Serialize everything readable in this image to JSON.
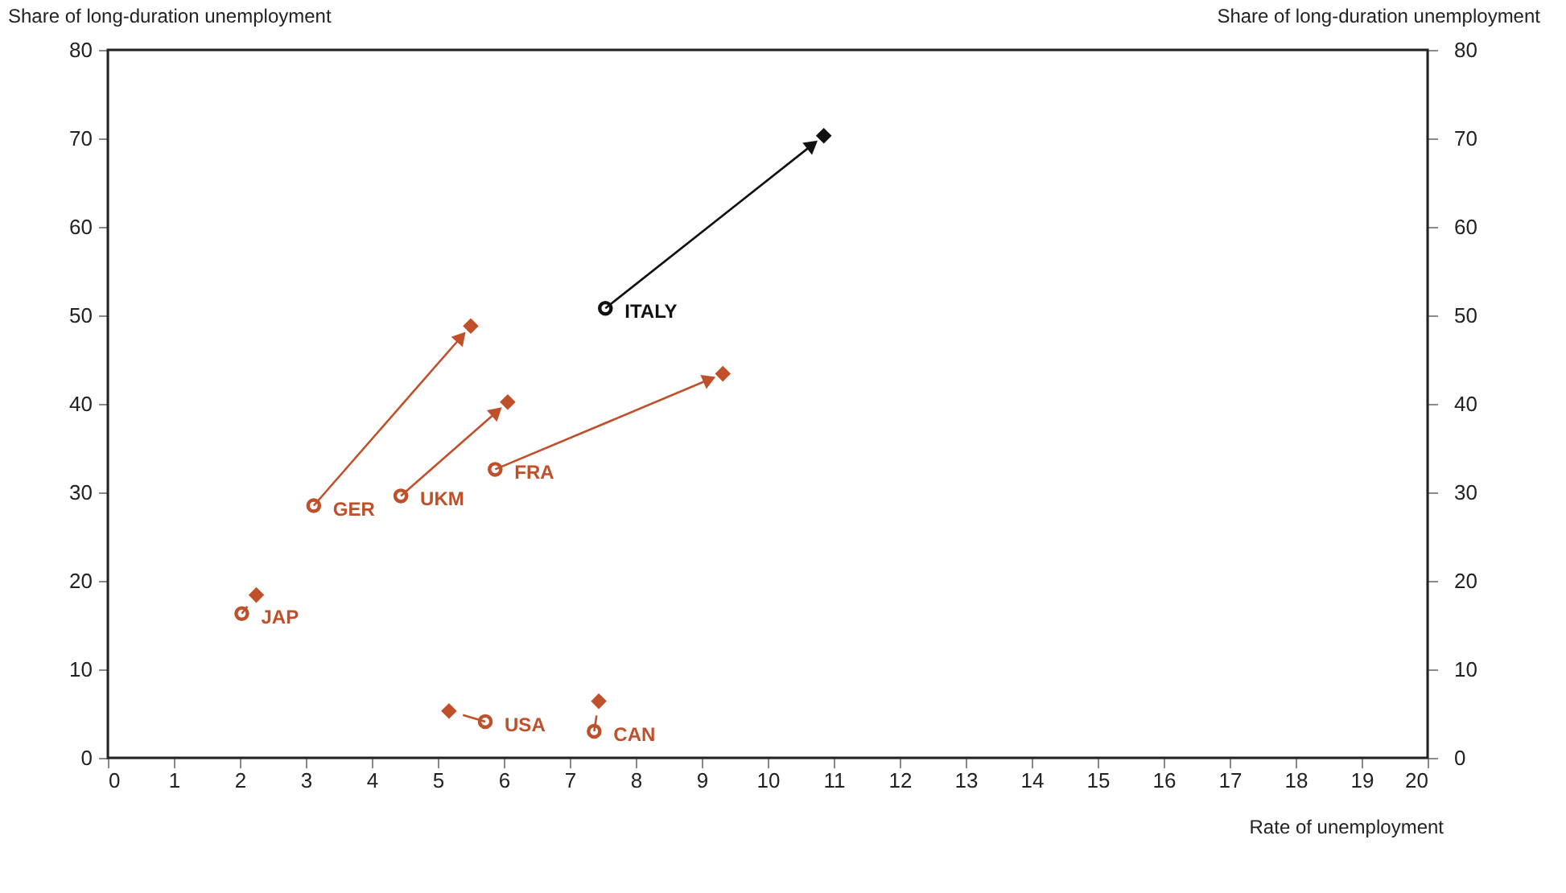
{
  "chart_data": {
    "type": "scatter",
    "ylabel": "Share of long-duration unemployment",
    "y2label": "Share of long-duration unemployment",
    "xlabel": "Rate of unemployment",
    "xlim": [
      0,
      20
    ],
    "xticks": [
      0,
      1,
      2,
      3,
      4,
      5,
      6,
      7,
      8,
      9,
      10,
      11,
      12,
      13,
      14,
      15,
      16,
      17,
      18,
      19,
      20
    ],
    "ylim": [
      0,
      80
    ],
    "yticks": [
      0,
      10,
      20,
      30,
      40,
      50,
      60,
      70,
      80
    ],
    "y2lim": [
      0,
      80
    ],
    "y2ticks": [
      0,
      10,
      20,
      30,
      40,
      50,
      60,
      70,
      80
    ],
    "grid": false,
    "series": [
      {
        "type": "scatter",
        "marker": "circle",
        "x": [
          7.54,
          3.12,
          4.44,
          5.87,
          2.03,
          5.72,
          7.37
        ],
        "values": [
          50.8,
          28.5,
          29.6,
          32.6,
          16.3,
          4.1,
          3.0
        ],
        "colors": [
          "#111111",
          "#c0502a",
          "#c0502a",
          "#c0502a",
          "#c0502a",
          "#c0502a",
          "#c0502a"
        ]
      },
      {
        "type": "scatter",
        "marker": "diamond",
        "x": [
          10.85,
          5.5,
          6.06,
          9.32,
          2.25,
          5.17,
          7.44
        ],
        "values": [
          70.3,
          48.8,
          40.2,
          43.4,
          18.4,
          5.3,
          6.4
        ],
        "colors": [
          "#111111",
          "#c0502a",
          "#c0502a",
          "#c0502a",
          "#c0502a",
          "#c0502a",
          "#c0502a"
        ]
      }
    ],
    "annotations": [
      {
        "text": "ITALY",
        "x": 7.54,
        "y": 50.8
      },
      {
        "text": "GER",
        "x": 3.12,
        "y": 28.5
      },
      {
        "text": "UKM",
        "x": 4.44,
        "y": 29.6
      },
      {
        "text": "FRA",
        "x": 5.87,
        "y": 32.6
      },
      {
        "text": "JAP",
        "x": 2.03,
        "y": 16.3
      },
      {
        "text": "USA",
        "x": 5.72,
        "y": 4.1
      },
      {
        "text": "CAN",
        "x": 7.37,
        "y": 3.0
      }
    ]
  }
}
